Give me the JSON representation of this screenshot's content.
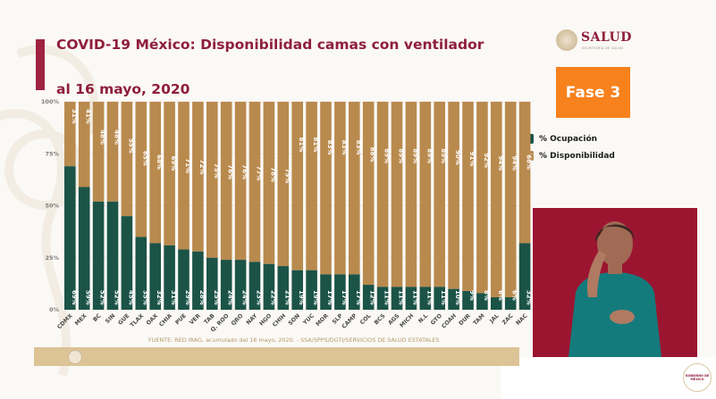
{
  "header": {
    "title_line1": "COVID-19 México: Disponibilidad camas con ventilador",
    "title_line2": "al 16 mayo, 2020"
  },
  "branding": {
    "salud_logo_text": "SALUD",
    "salud_logo_subtext": "SECRETARÍA DE SALUD",
    "gov_seal_text_1": "GOBIERNO DE",
    "gov_seal_text_2": "MÉXICO"
  },
  "phase_badge": {
    "label": "Fase 3",
    "color": "#f7811d"
  },
  "legend": {
    "items": [
      {
        "label": "% Ocupación",
        "color": "#1b5347"
      },
      {
        "label": "% Disponibilidad",
        "color": "#b98a4e"
      }
    ]
  },
  "footer": {
    "source_text": "FUENTE: RED IRAG, acumulado del 16 mayo, 2020.",
    "separator": "-",
    "agency_text": "SSA/SPPS/DGTI/SERVICIOS DE SALUD ESTATALES"
  },
  "interpreter_panel": {
    "description": "sign-language-interpreter-video"
  },
  "colors": {
    "occupancy": "#1b5347",
    "availability": "#b98a4e",
    "title": "#8f1f3a",
    "accent_bar": "#9f2241"
  },
  "chart_data": {
    "type": "bar",
    "stacked": true,
    "percent_stacked": true,
    "title": "COVID-19 México: Disponibilidad camas con ventilador",
    "subtitle": "al 16 mayo, 2020",
    "xlabel": "",
    "ylabel": "",
    "ylim": [
      0,
      100
    ],
    "y_ticks": [
      "0%",
      "25%",
      "50%",
      "75%",
      "100%"
    ],
    "grid": true,
    "legend_position": "right",
    "categories": [
      "CDMX",
      "MEX",
      "BC",
      "SIN",
      "GUE",
      "TLAX",
      "OAX",
      "CHIA",
      "PUE",
      "VER",
      "TAB",
      "Q. ROO",
      "QRO",
      "NAY",
      "HGO",
      "CHIH",
      "SON",
      "YUC",
      "MOR",
      "SLP",
      "CAMP",
      "COL",
      "BCS",
      "AGS",
      "MICH",
      "N.L",
      "GTO",
      "COAH",
      "DUR",
      "TAM",
      "JAL",
      "ZAC",
      "NAC"
    ],
    "series": [
      {
        "name": "% Ocupación",
        "values": [
          69,
          59,
          52,
          52,
          45,
          35,
          32,
          31,
          29,
          28,
          25,
          24,
          24,
          23,
          22,
          21,
          19,
          19,
          17,
          17,
          17,
          12,
          11,
          11,
          11,
          11,
          11,
          10,
          9,
          8,
          6,
          6,
          32
        ]
      },
      {
        "name": "% Disponibilidad",
        "values": [
          31,
          41,
          48,
          48,
          55,
          65,
          68,
          69,
          71,
          72,
          75,
          76,
          76,
          77,
          78,
          79,
          81,
          81,
          83,
          83,
          83,
          88,
          89,
          89,
          89,
          89,
          89,
          90,
          91,
          92,
          94,
          94,
          68
        ]
      }
    ]
  }
}
